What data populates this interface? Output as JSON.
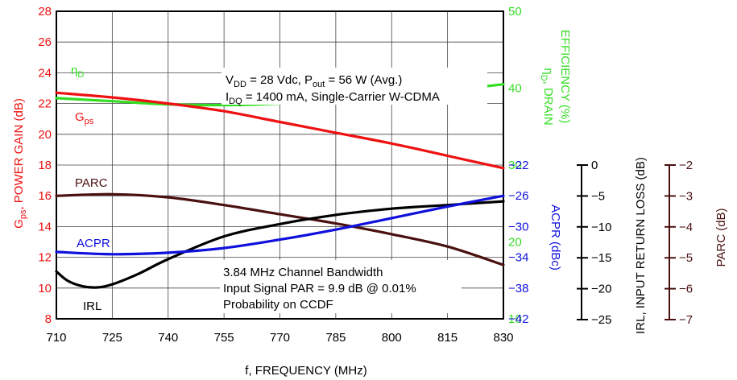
{
  "chart_data": {
    "type": "line",
    "x": [
      710,
      725,
      740,
      755,
      770,
      785,
      800,
      815,
      830
    ],
    "x_ticks": [
      "710",
      "725",
      "740",
      "755",
      "770",
      "785",
      "800",
      "815",
      "830"
    ],
    "xlim": [
      710,
      830
    ],
    "xlabel": "f, FREQUENCY (MHz)",
    "axes": {
      "gain": {
        "label_main": "G",
        "label_sub": "ps",
        "label_rest": ", POWER GAIN (dB)",
        "ticks": [
          8,
          10,
          12,
          14,
          16,
          18,
          20,
          22,
          24,
          26,
          28
        ],
        "ylim": [
          8,
          28
        ],
        "color": "#ee1111"
      },
      "efficiency": {
        "label_line1": "η",
        "label_sub": "D",
        "label_rest": ", DRAIN",
        "label_line2": "EFFICIENCY (%)",
        "ticks": [
          10,
          20,
          30,
          40,
          50
        ],
        "ylim": [
          10,
          50
        ],
        "color": "#33dd22"
      },
      "acpr": {
        "label": "ACPR (dBc)",
        "ticks": [
          -42,
          -38,
          -34,
          -30,
          -26,
          -22
        ],
        "ylim": [
          -42,
          -22
        ],
        "color": "#1010dd"
      },
      "irl": {
        "label": "IRL, INPUT RETURN LOSS (dB)",
        "ticks": [
          0,
          -5,
          -10,
          -15,
          -20,
          -25
        ],
        "ylim": [
          -25,
          0
        ],
        "color": "#000000"
      },
      "parc": {
        "label": "PARC (dB)",
        "ticks": [
          -2,
          -3,
          -4,
          -5,
          -6,
          -7
        ],
        "ylim": [
          -7,
          -2
        ],
        "color": "#4a1010"
      }
    },
    "series": [
      {
        "name": "ηD",
        "label_main": "η",
        "label_sub": "D",
        "axis": "efficiency",
        "color": "#33dd22",
        "x": [
          710,
          725,
          740,
          755,
          770,
          785,
          800,
          815,
          830
        ],
        "values": [
          38.7,
          38.3,
          37.9,
          37.8,
          38.0,
          38.4,
          39.0,
          39.7,
          40.5
        ]
      },
      {
        "name": "Gps",
        "label_main": "G",
        "label_sub": "ps",
        "axis": "gain",
        "color": "#ee1111",
        "x": [
          710,
          725,
          740,
          755,
          770,
          785,
          800,
          815,
          830
        ],
        "values": [
          22.7,
          22.4,
          22.0,
          21.5,
          20.8,
          20.1,
          19.4,
          18.6,
          17.8
        ]
      },
      {
        "name": "PARC",
        "label_main": "PARC",
        "axis": "parc",
        "color": "#4a1010",
        "x": [
          710,
          725,
          740,
          755,
          770,
          785,
          800,
          815,
          830
        ],
        "values": [
          -3.0,
          -2.95,
          -3.05,
          -3.3,
          -3.6,
          -3.9,
          -4.25,
          -4.65,
          -5.25
        ]
      },
      {
        "name": "IRL",
        "label_main": "IRL",
        "axis": "irl",
        "color": "#000000",
        "x": [
          710,
          713,
          717,
          721,
          725,
          732,
          740,
          755,
          770,
          785,
          800,
          815,
          830
        ],
        "values": [
          -17.3,
          -18.8,
          -19.7,
          -19.9,
          -19.4,
          -17.7,
          -15.3,
          -11.6,
          -9.6,
          -8.1,
          -7.1,
          -6.5,
          -5.9
        ]
      },
      {
        "name": "ACPR",
        "label_main": "ACPR",
        "axis": "acpr",
        "color": "#1010dd",
        "x": [
          710,
          725,
          740,
          755,
          770,
          785,
          800,
          815,
          830
        ],
        "values": [
          -33.3,
          -33.6,
          -33.4,
          -32.8,
          -31.7,
          -30.4,
          -28.9,
          -27.4,
          -26.0
        ]
      }
    ],
    "annotations": {
      "conditions": {
        "line1": {
          "a": "V",
          "a_sub": "DD",
          "b": " = 28 Vdc, P",
          "b_sub": "out",
          "c": " = 56 W (Avg.)"
        },
        "line2": {
          "a": "I",
          "a_sub": "DQ",
          "b": " = 1400 mA, Single-Carrier W-CDMA"
        }
      },
      "signal": [
        "3.84 MHz Channel Bandwidth",
        "Input Signal PAR = 9.9 dB @ 0.01%",
        "Probability on CCDF"
      ]
    },
    "grid": true
  }
}
